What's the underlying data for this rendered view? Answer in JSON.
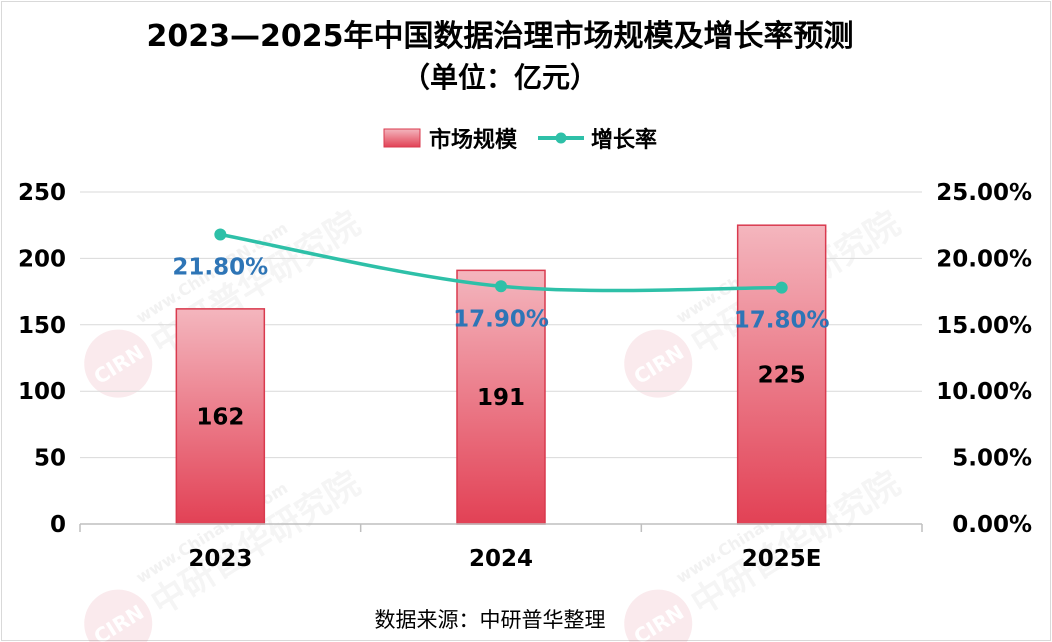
{
  "chart_data": {
    "type": "bar+line",
    "title": "2023—2025年中国数据治理市场规模及增长率预测",
    "subtitle": "（单位：亿元）",
    "categories": [
      "2023",
      "2024",
      "2025E"
    ],
    "series": [
      {
        "name": "市场规模",
        "type": "bar",
        "axis": "left",
        "values": [
          162,
          191,
          225
        ],
        "labels": [
          "162",
          "191",
          "225"
        ]
      },
      {
        "name": "增长率",
        "type": "line",
        "axis": "right",
        "values": [
          21.8,
          17.9,
          17.8
        ],
        "labels": [
          "21.80%",
          "17.90%",
          "17.80%"
        ]
      }
    ],
    "y_left": {
      "min": 0,
      "max": 250,
      "ticks": [
        "0",
        "50",
        "100",
        "150",
        "200",
        "250"
      ]
    },
    "y_right": {
      "min": 0,
      "max": 25,
      "ticks": [
        "0.00%",
        "5.00%",
        "10.00%",
        "15.00%",
        "20.00%",
        "25.00%"
      ]
    },
    "legend_position": "top-center",
    "grid": true,
    "colors": {
      "bar_top": "#f4b6be",
      "bar_bottom": "#e24155",
      "bar_edge": "#d93a4e",
      "line": "#2ec0a8",
      "rate_label": "#2e75b6",
      "grid": "#d9d9d9"
    },
    "source": "数据来源：中研普华整理",
    "watermark": "中研普华研究院 www.ChinaIRN.com CIRN"
  }
}
